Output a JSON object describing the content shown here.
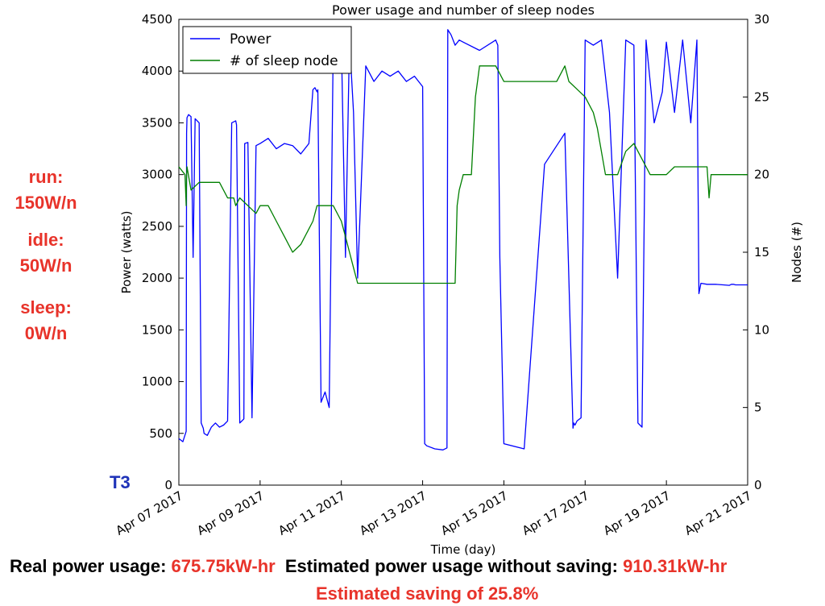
{
  "annotations": {
    "run_label": "run:",
    "run_value": "150W/n",
    "idle_label": "idle:",
    "idle_value": "50W/n",
    "sleep_label": "sleep:",
    "sleep_value": "0W/n",
    "trace_label": "T3",
    "real_label": "Real power usage: ",
    "real_value": "675.75kW-hr",
    "est_label": "Estimated power usage without saving: ",
    "est_value": "910.31kW-hr",
    "saving": "Estimated saving of 25.8%"
  },
  "colors": {
    "power": "#0000ff",
    "sleep": "#007f00",
    "annotation_red": "#e8332a",
    "annotation_blue": "#1f33b8"
  },
  "chart_data": {
    "type": "line",
    "title": "Power usage and number of sleep nodes",
    "xlabel": "Time (day)",
    "ylabel": "Power (watts)",
    "y2label": "Nodes (#)",
    "xlim": [
      0,
      14
    ],
    "ylim": [
      0,
      4500
    ],
    "y2lim": [
      0,
      30
    ],
    "x_ticks": [
      {
        "x": 0,
        "label": "Apr 07 2017"
      },
      {
        "x": 2,
        "label": "Apr 09 2017"
      },
      {
        "x": 4,
        "label": "Apr 11 2017"
      },
      {
        "x": 6,
        "label": "Apr 13 2017"
      },
      {
        "x": 8,
        "label": "Apr 15 2017"
      },
      {
        "x": 10,
        "label": "Apr 17 2017"
      },
      {
        "x": 12,
        "label": "Apr 19 2017"
      },
      {
        "x": 14,
        "label": "Apr 21 2017"
      }
    ],
    "y_ticks": [
      0,
      500,
      1000,
      1500,
      2000,
      2500,
      3000,
      3500,
      4000,
      4500
    ],
    "y2_ticks": [
      0,
      5,
      10,
      15,
      20,
      25,
      30
    ],
    "grid": false,
    "legend_position": "top-left",
    "series": [
      {
        "name": "Power",
        "axis": "left",
        "color": "#0000ff",
        "x": [
          0.0,
          0.1,
          0.18,
          0.19,
          0.2,
          0.24,
          0.3,
          0.35,
          0.4,
          0.5,
          0.55,
          0.6,
          0.62,
          0.7,
          0.8,
          0.9,
          1.0,
          1.1,
          1.2,
          1.3,
          1.4,
          1.42,
          1.5,
          1.55,
          1.6,
          1.62,
          1.7,
          1.8,
          1.9,
          2.0,
          2.2,
          2.4,
          2.6,
          2.8,
          3.0,
          3.2,
          3.3,
          3.35,
          3.4,
          3.42,
          3.5,
          3.6,
          3.7,
          3.8,
          3.9,
          4.0,
          4.1,
          4.2,
          4.3,
          4.4,
          4.6,
          4.8,
          5.0,
          5.2,
          5.4,
          5.6,
          5.8,
          6.0,
          6.05,
          6.1,
          6.3,
          6.5,
          6.6,
          6.62,
          6.65,
          6.7,
          6.8,
          6.9,
          7.0,
          7.4,
          7.8,
          7.85,
          7.9,
          8.0,
          8.5,
          9.0,
          9.5,
          9.7,
          9.72,
          9.75,
          9.8,
          9.9,
          10.0,
          10.2,
          10.4,
          10.6,
          10.8,
          11.0,
          11.2,
          11.3,
          11.35,
          11.4,
          11.5,
          11.7,
          11.9,
          12.0,
          12.2,
          12.4,
          12.6,
          12.75,
          12.8,
          12.85,
          13.0,
          13.2,
          13.4,
          13.55,
          13.6,
          13.65,
          13.7,
          14.0
        ],
        "y": [
          450,
          420,
          520,
          3400,
          3550,
          3580,
          3560,
          2200,
          3540,
          3500,
          600,
          550,
          500,
          480,
          560,
          600,
          560,
          580,
          620,
          3500,
          3520,
          3480,
          600,
          620,
          640,
          3300,
          3310,
          650,
          3280,
          3300,
          3350,
          3250,
          3300,
          3280,
          3200,
          3300,
          3820,
          3840,
          3800,
          3820,
          800,
          900,
          750,
          4250,
          4300,
          4280,
          2200,
          4300,
          3600,
          2000,
          4050,
          3900,
          4000,
          3950,
          4000,
          3900,
          3950,
          3850,
          400,
          380,
          350,
          340,
          360,
          4400,
          4380,
          4350,
          4250,
          4300,
          4280,
          4200,
          4300,
          4250,
          2200,
          400,
          350,
          3100,
          3400,
          550,
          600,
          580,
          620,
          650,
          4300,
          4250,
          4300,
          3600,
          2000,
          4300,
          4250,
          600,
          580,
          560,
          4300,
          3500,
          3800,
          4280,
          3600,
          4300,
          3500,
          4300,
          1850,
          1950,
          1940,
          1940,
          1935,
          1930,
          1940,
          1940,
          1935,
          1935
        ]
      },
      {
        "name": "# of sleep node",
        "axis": "right",
        "color": "#007f00",
        "x": [
          0.0,
          0.15,
          0.18,
          0.19,
          0.2,
          0.3,
          0.5,
          0.7,
          0.9,
          1.0,
          1.2,
          1.35,
          1.4,
          1.5,
          1.7,
          1.9,
          2.0,
          2.2,
          2.4,
          2.6,
          2.8,
          3.0,
          3.2,
          3.3,
          3.4,
          3.6,
          3.8,
          4.0,
          4.1,
          4.2,
          4.3,
          4.4,
          6.8,
          6.85,
          6.9,
          7.0,
          7.1,
          7.2,
          7.3,
          7.35,
          7.4,
          7.6,
          7.8,
          8.0,
          8.5,
          9.0,
          9.3,
          9.5,
          9.55,
          9.6,
          9.8,
          10.0,
          10.2,
          10.3,
          10.5,
          10.8,
          11.0,
          11.2,
          11.3,
          11.4,
          11.5,
          11.6,
          12.0,
          12.2,
          12.3,
          12.4,
          12.45,
          12.5,
          12.6,
          13.0,
          13.05,
          13.1,
          13.2,
          13.5,
          13.55,
          13.6,
          14.0
        ],
        "y": [
          20.5,
          20,
          18,
          20,
          20.5,
          19,
          19.5,
          19.5,
          19.5,
          19.5,
          18.5,
          18.5,
          18,
          18.5,
          18,
          17.5,
          18,
          18,
          17,
          16,
          15,
          15.5,
          16.5,
          17,
          18,
          18,
          18,
          17,
          16,
          15,
          14,
          13,
          13,
          18,
          19,
          20,
          20,
          20,
          25,
          26,
          27,
          27,
          27,
          26,
          26,
          26,
          26,
          27,
          26.5,
          26,
          25.5,
          25,
          24,
          23,
          20,
          20,
          21.5,
          22,
          21.5,
          21,
          20.5,
          20,
          20,
          20.5,
          20.5,
          20.5,
          20.5,
          20.5,
          20.5,
          20.5,
          18.5,
          20,
          20,
          20,
          20,
          20,
          20
        ]
      }
    ]
  }
}
